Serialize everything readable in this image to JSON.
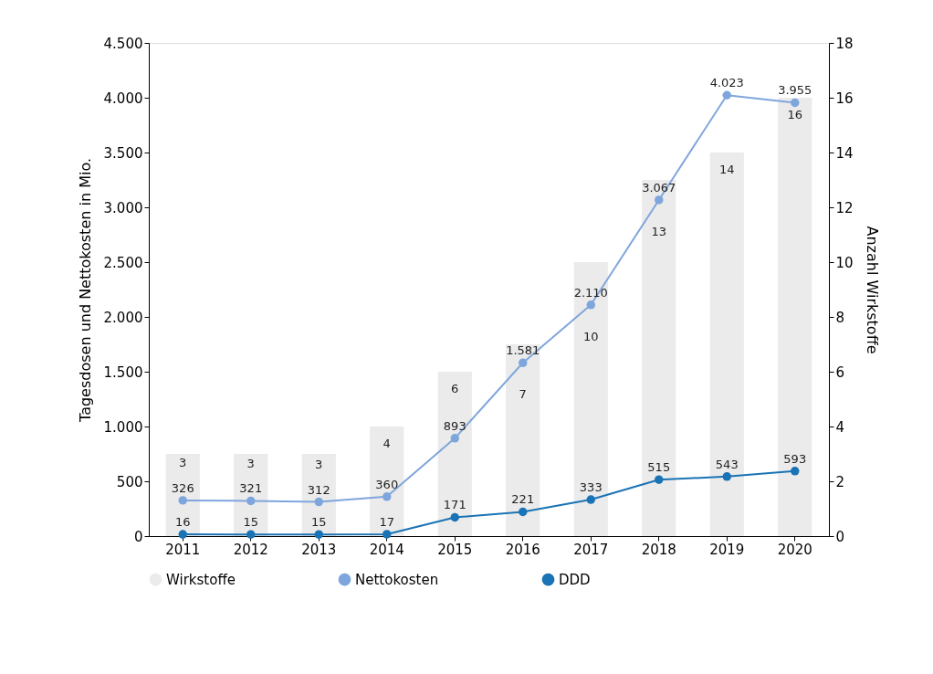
{
  "chart_data": {
    "type": "bar",
    "ylabel": "Tagesdosen und Nettokosten in Mio.",
    "y2label": "Anzahl Wirkstoffe",
    "categories": [
      "2011",
      "2012",
      "2013",
      "2014",
      "2015",
      "2016",
      "2017",
      "2018",
      "2019",
      "2020"
    ],
    "series": [
      {
        "name": "Wirkstoffe",
        "axis": "y2",
        "color": "#ebebeb",
        "values": [
          3,
          3,
          3,
          4,
          6,
          7,
          10,
          13,
          14,
          16
        ]
      },
      {
        "name": "Nettokosten",
        "type": "line",
        "color": "#7fa6dc",
        "values": [
          326,
          321,
          312,
          360,
          893,
          1581,
          2110,
          3067,
          4023,
          3955
        ],
        "value_labels": [
          "326",
          "321",
          "312",
          "360",
          "893",
          "1.581",
          "2.110",
          "3.067",
          "4.023",
          "3.955"
        ]
      },
      {
        "name": "DDD",
        "type": "line",
        "color": "#1a73b5",
        "values": [
          16,
          15,
          15,
          17,
          171,
          221,
          333,
          515,
          543,
          593
        ]
      }
    ],
    "ylim": [
      0,
      4500
    ],
    "yticks": [
      {
        "value": 0,
        "label": "0"
      },
      {
        "value": 500,
        "label": "500"
      },
      {
        "value": 1000,
        "label": "1.000"
      },
      {
        "value": 1500,
        "label": "1.500"
      },
      {
        "value": 2000,
        "label": "2.000"
      },
      {
        "value": 2500,
        "label": "2.500"
      },
      {
        "value": 3000,
        "label": "3.000"
      },
      {
        "value": 3500,
        "label": "3.500"
      },
      {
        "value": 4000,
        "label": "4.000"
      },
      {
        "value": 4500,
        "label": "4.500"
      }
    ],
    "y2lim": [
      0,
      18
    ],
    "y2ticks": [
      0,
      2,
      4,
      6,
      8,
      10,
      12,
      14,
      16,
      18
    ],
    "data_labels": true,
    "marker": "circle",
    "line_style": "solid",
    "grid": false,
    "legend": "bottom"
  }
}
